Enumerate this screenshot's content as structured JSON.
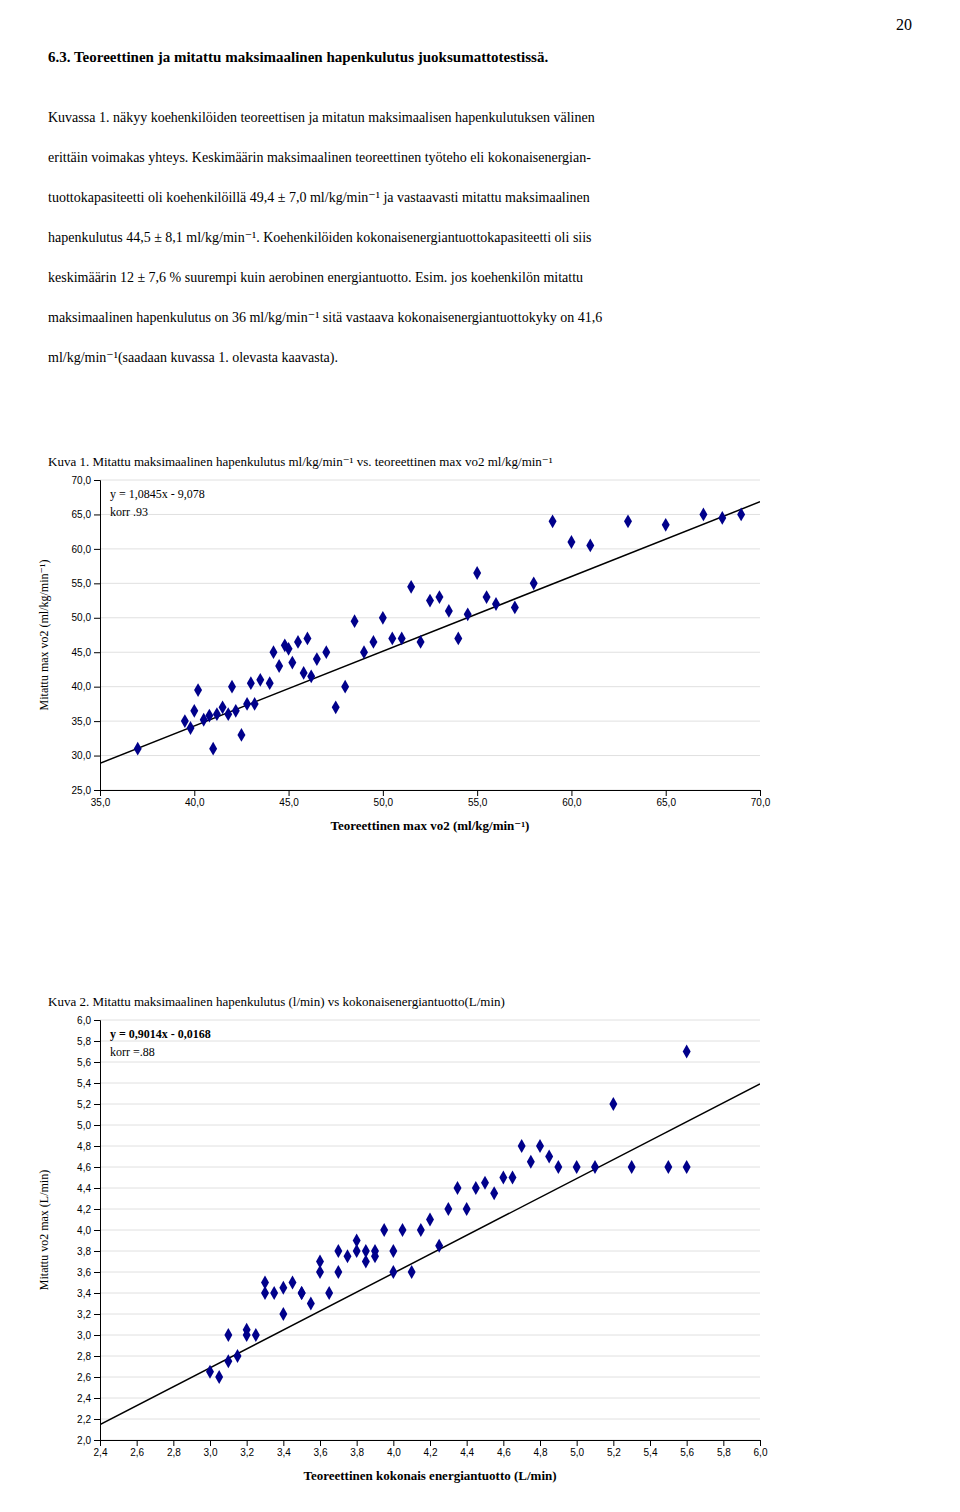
{
  "page_number": "20",
  "heading": "6.3. Teoreettinen ja mitattu maksimaalinen hapenkulutus juoksumattotestissä.",
  "para_lines": [
    "Kuvassa 1. näkyy koehenkilöiden teoreettisen ja mitatun maksimaalisen hapenkulutuksen välinen",
    "erittäin voimakas yhteys. Keskimäärin maksimaalinen teoreettinen työteho eli kokonaisenergian-",
    "tuottokapasiteetti oli koehenkilöillä 49,4 ± 7,0 ml/kg/min⁻¹  ja vastaavasti mitattu maksimaalinen",
    "hapenkulutus 44,5 ± 8,1 ml/kg/min⁻¹. Koehenkilöiden kokonaisenergiantuottokapasiteetti oli siis",
    "keskimäärin 12 ± 7,6 % suurempi kuin aerobinen energiantuotto. Esim. jos koehenkilön mitattu",
    "maksimaalinen hapenkulutus on 36 ml/kg/min⁻¹ sitä vastaava kokonaisenergiantuottokyky on 41,6",
    "ml/kg/min⁻¹(saadaan kuvassa 1. olevasta kaavasta)."
  ],
  "chart_data": [
    {
      "type": "scatter",
      "title": "Kuva 1. Mitattu maksimaalinen hapenkulutus ml/kg/min⁻¹  vs. teoreettinen max vo2 ml/kg/min⁻¹",
      "x_label": "Teoreettinen max vo2 (ml/kg/min⁻¹)",
      "y_label": "Mitattu max vo2 (ml/kg/min⁻¹)",
      "annotations": [
        "y = 1,0845x - 9,078",
        "korr .93"
      ],
      "xlim": [
        35.0,
        70.0
      ],
      "ylim": [
        25.0,
        70.0
      ],
      "xticks": [
        {
          "value": 35.0,
          "label": "35,0"
        },
        {
          "value": 40.0,
          "label": "40,0"
        },
        {
          "value": 45.0,
          "label": "45,0"
        },
        {
          "value": 50.0,
          "label": "50,0"
        },
        {
          "value": 55.0,
          "label": "55,0"
        },
        {
          "value": 60.0,
          "label": "60,0"
        },
        {
          "value": 65.0,
          "label": "65,0"
        },
        {
          "value": 70.0,
          "label": "70,0"
        }
      ],
      "yticks": [
        {
          "value": 25.0,
          "label": "25,0"
        },
        {
          "value": 30.0,
          "label": "30,0"
        },
        {
          "value": 35.0,
          "label": "35,0"
        },
        {
          "value": 40.0,
          "label": "40,0"
        },
        {
          "value": 45.0,
          "label": "45,0"
        },
        {
          "value": 50.0,
          "label": "50,0"
        },
        {
          "value": 55.0,
          "label": "55,0"
        },
        {
          "value": 60.0,
          "label": "60,0"
        },
        {
          "value": 65.0,
          "label": "65,0"
        },
        {
          "value": 70.0,
          "label": "70,0"
        }
      ],
      "grid": "y",
      "series": [
        {
          "type": "scatter",
          "color": "#00008b",
          "marker": "diamond",
          "x": [
            37.0,
            39.5,
            39.8,
            40.0,
            40.2,
            40.5,
            40.8,
            41.0,
            41.2,
            41.5,
            41.8,
            42.0,
            42.2,
            42.5,
            42.8,
            43.0,
            43.2,
            43.5,
            44.0,
            44.2,
            44.5,
            44.8,
            45.0,
            45.2,
            45.5,
            45.8,
            46.0,
            46.2,
            46.5,
            47.0,
            47.5,
            48.0,
            48.5,
            49.0,
            49.5,
            50.0,
            50.5,
            51.0,
            51.5,
            52.0,
            52.5,
            53.0,
            53.5,
            54.0,
            54.5,
            55.0,
            55.5,
            56.0,
            57.0,
            58.0,
            59.0,
            60.0,
            61.0,
            63.0,
            65.0,
            67.0,
            68.0,
            69.0
          ],
          "values": [
            31.0,
            35.0,
            34.0,
            36.5,
            39.5,
            35.2,
            35.8,
            31.0,
            36.0,
            37.0,
            36.0,
            40.0,
            36.5,
            33.0,
            37.5,
            40.5,
            37.5,
            41.0,
            40.5,
            45.0,
            43.0,
            46.0,
            45.5,
            43.5,
            46.5,
            42.0,
            47.0,
            41.5,
            44.0,
            45.0,
            37.0,
            40.0,
            49.5,
            45.0,
            46.5,
            50.0,
            47.0,
            47.0,
            54.5,
            46.5,
            52.5,
            53.0,
            51.0,
            47.0,
            50.5,
            56.5,
            53.0,
            52.0,
            51.5,
            55.0,
            64.0,
            61.0,
            60.5,
            64.0,
            63.5,
            65.0,
            64.5,
            65.0
          ]
        },
        {
          "type": "line",
          "color": "#000000",
          "line_style": "solid",
          "x": [
            35.0,
            70.0
          ],
          "values": [
            28.8795,
            66.837
          ]
        }
      ]
    },
    {
      "type": "scatter",
      "title": "Kuva 2. Mitattu maksimaalinen hapenkulutus (l/min) vs kokonaisenergiantuotto(L/min)",
      "x_label": "Teoreettinen kokonais energiantuotto (L/min)",
      "y_label": "Mitattu vo2 max (L/min)",
      "annotations": [
        "y = 0,9014x - 0,0168",
        "korr =.88"
      ],
      "xlim": [
        2.4,
        6.0
      ],
      "ylim": [
        2.0,
        6.0
      ],
      "xticks": [
        {
          "value": 2.4,
          "label": "2,4"
        },
        {
          "value": 2.6,
          "label": "2,6"
        },
        {
          "value": 2.8,
          "label": "2,8"
        },
        {
          "value": 3.0,
          "label": "3,0"
        },
        {
          "value": 3.2,
          "label": "3,2"
        },
        {
          "value": 3.4,
          "label": "3,4"
        },
        {
          "value": 3.6,
          "label": "3,6"
        },
        {
          "value": 3.8,
          "label": "3,8"
        },
        {
          "value": 4.0,
          "label": "4,0"
        },
        {
          "value": 4.2,
          "label": "4,2"
        },
        {
          "value": 4.4,
          "label": "4,4"
        },
        {
          "value": 4.6,
          "label": "4,6"
        },
        {
          "value": 4.8,
          "label": "4,8"
        },
        {
          "value": 5.0,
          "label": "5,0"
        },
        {
          "value": 5.2,
          "label": "5,2"
        },
        {
          "value": 5.4,
          "label": "5,4"
        },
        {
          "value": 5.6,
          "label": "5,6"
        },
        {
          "value": 5.8,
          "label": "5,8"
        },
        {
          "value": 6.0,
          "label": "6,0"
        }
      ],
      "yticks": [
        {
          "value": 2.0,
          "label": "2,0"
        },
        {
          "value": 2.2,
          "label": "2,2"
        },
        {
          "value": 2.4,
          "label": "2,4"
        },
        {
          "value": 2.6,
          "label": "2,6"
        },
        {
          "value": 2.8,
          "label": "2,8"
        },
        {
          "value": 3.0,
          "label": "3,0"
        },
        {
          "value": 3.2,
          "label": "3,2"
        },
        {
          "value": 3.4,
          "label": "3,4"
        },
        {
          "value": 3.6,
          "label": "3,6"
        },
        {
          "value": 3.8,
          "label": "3,8"
        },
        {
          "value": 4.0,
          "label": "4,0"
        },
        {
          "value": 4.2,
          "label": "4,2"
        },
        {
          "value": 4.4,
          "label": "4,4"
        },
        {
          "value": 4.6,
          "label": "4,6"
        },
        {
          "value": 4.8,
          "label": "4,8"
        },
        {
          "value": 5.0,
          "label": "5,0"
        },
        {
          "value": 5.2,
          "label": "5,2"
        },
        {
          "value": 5.4,
          "label": "5,4"
        },
        {
          "value": 5.6,
          "label": "5,6"
        },
        {
          "value": 5.8,
          "label": "5,8"
        },
        {
          "value": 6.0,
          "label": "6,0"
        }
      ],
      "grid": "y",
      "series": [
        {
          "type": "scatter",
          "color": "#00008b",
          "marker": "diamond",
          "x": [
            3.0,
            3.05,
            3.1,
            3.1,
            3.15,
            3.2,
            3.2,
            3.25,
            3.3,
            3.3,
            3.35,
            3.4,
            3.4,
            3.45,
            3.5,
            3.5,
            3.55,
            3.6,
            3.6,
            3.65,
            3.7,
            3.7,
            3.75,
            3.8,
            3.8,
            3.85,
            3.85,
            3.9,
            3.9,
            3.95,
            4.0,
            4.0,
            4.05,
            4.1,
            4.15,
            4.2,
            4.25,
            4.3,
            4.35,
            4.4,
            4.45,
            4.5,
            4.55,
            4.6,
            4.65,
            4.7,
            4.75,
            4.8,
            4.85,
            4.9,
            5.0,
            5.1,
            5.2,
            5.3,
            5.5,
            5.6,
            5.6
          ],
          "values": [
            2.65,
            2.6,
            2.75,
            3.0,
            2.8,
            3.0,
            3.05,
            3.0,
            3.4,
            3.5,
            3.4,
            3.45,
            3.2,
            3.5,
            3.4,
            3.4,
            3.3,
            3.6,
            3.7,
            3.4,
            3.8,
            3.6,
            3.75,
            3.8,
            3.9,
            3.7,
            3.8,
            3.8,
            3.75,
            4.0,
            3.8,
            3.6,
            4.0,
            3.6,
            4.0,
            4.1,
            3.85,
            4.2,
            4.4,
            4.2,
            4.4,
            4.45,
            4.35,
            4.5,
            4.5,
            4.8,
            4.65,
            4.8,
            4.7,
            4.6,
            4.6,
            4.6,
            5.2,
            4.6,
            4.6,
            4.6,
            5.7
          ]
        },
        {
          "type": "line",
          "color": "#000000",
          "line_style": "solid",
          "x": [
            2.4,
            6.0
          ],
          "values": [
            2.14656,
            5.3916
          ]
        }
      ]
    }
  ]
}
